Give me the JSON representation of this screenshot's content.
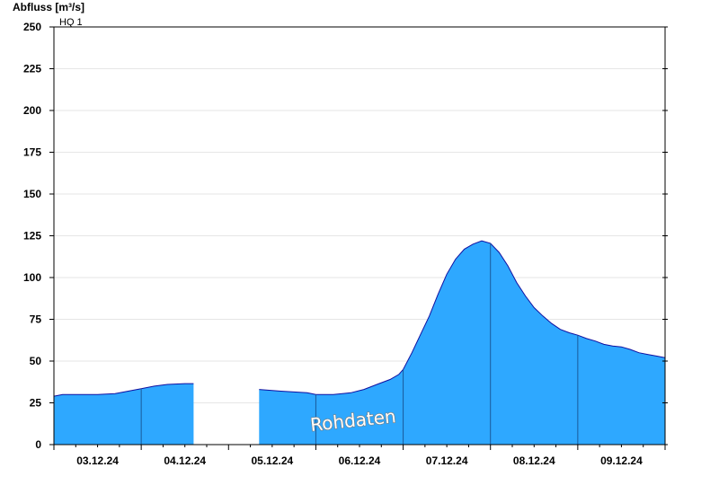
{
  "chart_data": {
    "type": "area",
    "ylabel": "Abfluss [m³/s]",
    "ylim": [
      0,
      250
    ],
    "yticks": [
      0,
      25,
      50,
      75,
      100,
      125,
      150,
      175,
      200,
      225,
      250
    ],
    "grid": true,
    "xlim": [
      0,
      7
    ],
    "x_tick_labels": [
      "03.12.24",
      "04.12.24",
      "05.12.24",
      "06.12.24",
      "07.12.24",
      "08.12.24",
      "09.12.24"
    ],
    "day_boundaries": [
      1,
      2,
      3,
      4,
      5,
      6
    ],
    "threshold": {
      "label": "HQ 1",
      "value": 250
    },
    "watermark": "Rohdaten",
    "fill_color": "#2ea8ff",
    "line_color": "#1010a0",
    "series": [
      {
        "segments": [
          [
            [
              0,
              29
            ],
            [
              0.1,
              30
            ],
            [
              0.3,
              30
            ],
            [
              0.5,
              30
            ],
            [
              0.7,
              30.5
            ],
            [
              0.85,
              32
            ],
            [
              1.0,
              33.5
            ],
            [
              1.15,
              35
            ],
            [
              1.3,
              36
            ],
            [
              1.5,
              36.5
            ],
            [
              1.6,
              36.5
            ]
          ],
          [
            [
              2.35,
              33
            ],
            [
              2.6,
              32
            ],
            [
              2.9,
              31
            ],
            [
              3.0,
              30
            ],
            [
              3.2,
              30
            ],
            [
              3.4,
              31
            ],
            [
              3.55,
              33
            ],
            [
              3.7,
              36
            ],
            [
              3.85,
              39
            ],
            [
              3.95,
              42
            ],
            [
              4.0,
              45
            ],
            [
              4.1,
              55
            ],
            [
              4.2,
              66
            ],
            [
              4.3,
              77
            ],
            [
              4.4,
              90
            ],
            [
              4.5,
              102
            ],
            [
              4.6,
              111
            ],
            [
              4.7,
              117
            ],
            [
              4.8,
              120
            ],
            [
              4.9,
              122
            ],
            [
              5.0,
              120.5
            ],
            [
              5.1,
              115
            ],
            [
              5.2,
              107
            ],
            [
              5.3,
              97
            ],
            [
              5.4,
              89
            ],
            [
              5.5,
              82
            ],
            [
              5.6,
              77
            ],
            [
              5.7,
              72.5
            ],
            [
              5.8,
              69
            ],
            [
              5.9,
              67
            ],
            [
              6.0,
              65.5
            ],
            [
              6.1,
              63.5
            ],
            [
              6.2,
              62
            ],
            [
              6.3,
              60
            ],
            [
              6.4,
              59
            ],
            [
              6.5,
              58.5
            ],
            [
              6.6,
              57
            ],
            [
              6.7,
              55
            ],
            [
              6.8,
              54
            ],
            [
              6.9,
              53
            ],
            [
              7.0,
              52
            ]
          ]
        ]
      }
    ]
  }
}
